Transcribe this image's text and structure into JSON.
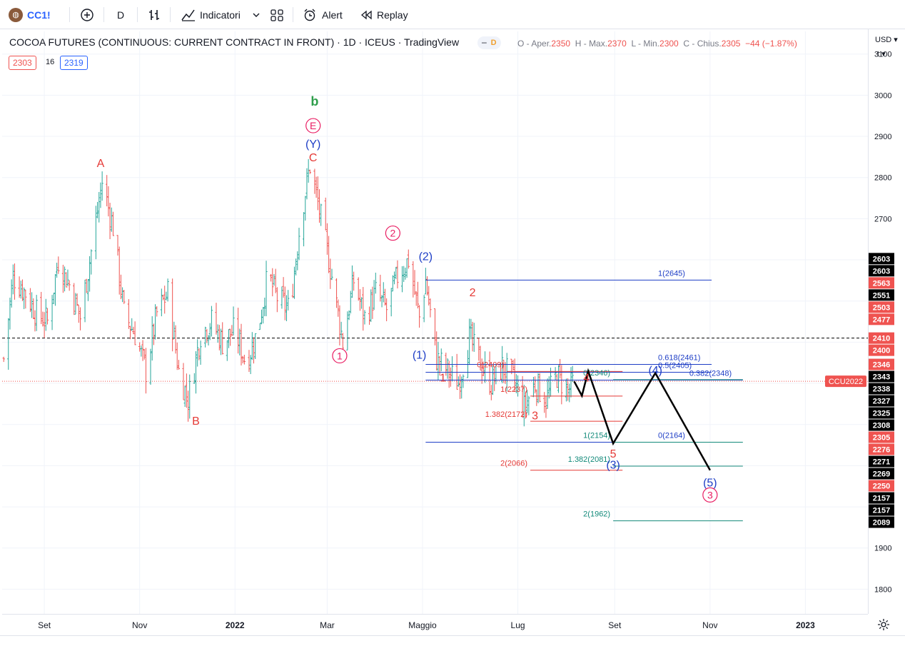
{
  "toolbar": {
    "symbol": "CC1!",
    "interval": "D",
    "indicators_label": "Indicatori",
    "alert_label": "Alert",
    "replay_label": "Replay"
  },
  "legend": {
    "title": "COCOA FUTURES (CONTINUOUS: CURRENT CONTRACT IN FRONT) · 1D · ICEUS · TradingView",
    "badge": "D",
    "o_label": "O - Aper.",
    "o_value": "2350",
    "h_label": "H - Max.",
    "h_value": "2370",
    "l_label": "L - Min.",
    "l_value": "2300",
    "c_label": "C - Chius.",
    "c_value": "2305",
    "change": "−44 (−1.87%)",
    "bid": "2303",
    "spread": "16",
    "ask": "2319"
  },
  "price_axis": {
    "currency": "USD",
    "unit_menu": "t",
    "ticks": [
      1800,
      1900,
      2000,
      2100,
      2200,
      2300,
      2400,
      2500,
      2600,
      2700,
      2800,
      2900,
      3000,
      3100
    ],
    "tick_labels": [
      "1800",
      "1900",
      "2000",
      "",
      "",
      "",
      "",
      "",
      "",
      "2700",
      "2800",
      "2900",
      "3000",
      "3100"
    ],
    "tags": [
      {
        "text": "2603",
        "price": 2603,
        "color": "#000000"
      },
      {
        "text": "2603",
        "price": 2603,
        "color": "#000000"
      },
      {
        "text": "2563",
        "price": 2563,
        "color": "#ef5350"
      },
      {
        "text": "2551",
        "price": 2551,
        "color": "#000000"
      },
      {
        "text": "2503",
        "price": 2503,
        "color": "#ef5350"
      },
      {
        "text": "2477",
        "price": 2477,
        "color": "#ef5350"
      },
      {
        "text": "2410",
        "price": 2410,
        "color": "#ef5350"
      },
      {
        "text": "2400",
        "price": 2400,
        "color": "#ef5350"
      },
      {
        "text": "2346",
        "price": 2346,
        "color": "#ef5350"
      },
      {
        "text": "2343",
        "price": 2343,
        "color": "#000000"
      },
      {
        "text": "2338",
        "price": 2338,
        "color": "#000000"
      },
      {
        "text": "2327",
        "price": 2327,
        "color": "#000000"
      },
      {
        "text": "2325",
        "price": 2325,
        "color": "#000000"
      },
      {
        "text": "2308",
        "price": 2308,
        "color": "#000000"
      },
      {
        "text": "2305",
        "price": 2305,
        "color": "#ef5350"
      },
      {
        "text": "2276",
        "price": 2276,
        "color": "#ef5350"
      },
      {
        "text": "2271",
        "price": 2271,
        "color": "#000000"
      },
      {
        "text": "2269",
        "price": 2269,
        "color": "#000000"
      },
      {
        "text": "2250",
        "price": 2250,
        "color": "#ef5350"
      },
      {
        "text": "2157",
        "price": 2157,
        "color": "#000000"
      },
      {
        "text": "2157",
        "price": 2157,
        "color": "#000000"
      },
      {
        "text": "2089",
        "price": 2089,
        "color": "#000000"
      }
    ],
    "contract_tag": "CCU2022"
  },
  "time_axis": {
    "labels": [
      {
        "text": "Set",
        "date": "2021-09-01"
      },
      {
        "text": "Nov",
        "date": "2021-11-01"
      },
      {
        "text": "2022",
        "date": "2022-01-01"
      },
      {
        "text": "Mar",
        "date": "2022-03-01"
      },
      {
        "text": "Maggio",
        "date": "2022-05-01"
      },
      {
        "text": "Lug",
        "date": "2022-07-01"
      },
      {
        "text": "Set",
        "date": "2022-09-01"
      },
      {
        "text": "Nov",
        "date": "2022-11-01"
      },
      {
        "text": "2023",
        "date": "2023-01-01"
      }
    ]
  },
  "chart_data": {
    "type": "candlestick",
    "title": "COCOA FUTURES (CONTINUOUS: CURRENT CONTRACT IN FRONT) · 1D · ICEUS · TradingView",
    "xlabel": "",
    "ylabel": "",
    "ylim": [
      1740,
      3155
    ],
    "xlim": [
      "2021-08-05",
      "2023-02-10"
    ],
    "grid": true,
    "colors": {
      "up": "#26a69a",
      "down": "#ef5350",
      "red": "#e53935",
      "blue": "#1e3ec6",
      "green": "#2e9e4b",
      "pink": "#e91e63",
      "teal": "#138a7a",
      "black": "#000000"
    },
    "close_path": [
      [
        "2021-08-06",
        2360
      ],
      [
        "2021-08-12",
        2560
      ],
      [
        "2021-08-20",
        2520
      ],
      [
        "2021-08-27",
        2470
      ],
      [
        "2021-09-03",
        2450
      ],
      [
        "2021-09-10",
        2600
      ],
      [
        "2021-09-17",
        2540
      ],
      [
        "2021-09-24",
        2460
      ],
      [
        "2021-10-01",
        2620
      ],
      [
        "2021-10-08",
        2790
      ],
      [
        "2021-10-15",
        2680
      ],
      [
        "2021-10-22",
        2470
      ],
      [
        "2021-10-29",
        2420
      ],
      [
        "2021-11-05",
        2330
      ],
      [
        "2021-11-12",
        2470
      ],
      [
        "2021-11-19",
        2520
      ],
      [
        "2021-11-26",
        2330
      ],
      [
        "2021-12-02",
        2260
      ],
      [
        "2021-12-10",
        2420
      ],
      [
        "2021-12-17",
        2450
      ],
      [
        "2021-12-24",
        2400
      ],
      [
        "2022-01-01",
        2430
      ],
      [
        "2022-01-08",
        2350
      ],
      [
        "2022-01-15",
        2420
      ],
      [
        "2022-01-22",
        2560
      ],
      [
        "2022-01-29",
        2500
      ],
      [
        "2022-02-05",
        2480
      ],
      [
        "2022-02-12",
        2700
      ],
      [
        "2022-02-18",
        2830
      ],
      [
        "2022-02-25",
        2700
      ],
      [
        "2022-03-04",
        2560
      ],
      [
        "2022-03-11",
        2400
      ],
      [
        "2022-03-18",
        2550
      ],
      [
        "2022-03-25",
        2460
      ],
      [
        "2022-04-01",
        2520
      ],
      [
        "2022-04-08",
        2480
      ],
      [
        "2022-04-15",
        2560
      ],
      [
        "2022-04-22",
        2600
      ],
      [
        "2022-04-29",
        2460
      ],
      [
        "2022-05-03",
        2551
      ],
      [
        "2022-05-10",
        2360
      ],
      [
        "2022-05-17",
        2330
      ],
      [
        "2022-05-24",
        2300
      ],
      [
        "2022-05-31",
        2410
      ],
      [
        "2022-06-07",
        2350
      ],
      [
        "2022-06-14",
        2300
      ],
      [
        "2022-06-21",
        2340
      ],
      [
        "2022-06-28",
        2310
      ],
      [
        "2022-07-05",
        2240
      ],
      [
        "2022-07-12",
        2300
      ],
      [
        "2022-07-19",
        2260
      ],
      [
        "2022-07-26",
        2320
      ],
      [
        "2022-08-02",
        2280
      ],
      [
        "2022-08-06",
        2305
      ]
    ],
    "projection": {
      "color": "#000000",
      "points": [
        [
          "2022-08-06",
          2305
        ],
        [
          "2022-08-11",
          2270
        ],
        [
          "2022-08-15",
          2330
        ],
        [
          "2022-08-31",
          2154
        ],
        [
          "2022-09-27",
          2325
        ],
        [
          "2022-11-01",
          2089
        ]
      ]
    },
    "price_line": {
      "price": 2410,
      "style": "dashed",
      "color": "#000000"
    },
    "current_price_line": {
      "price": 2305,
      "style": "dotted",
      "color": "#ef5350"
    },
    "fib_levels": [
      {
        "label": "1(2645)",
        "price": 2551,
        "from": "2022-05-03",
        "to": "2022-11-02",
        "color": "#1e3ec6"
      },
      {
        "label": "0.618(2461)",
        "price": 2346,
        "from": "2022-05-03",
        "to": "2022-11-02",
        "color": "#1e3ec6"
      },
      {
        "label": "0.5(2405)",
        "price": 2327,
        "from": "2022-05-03",
        "to": "2022-11-02",
        "color": "#1e3ec6"
      },
      {
        "label": "0.382(2348)",
        "price": 2308,
        "from": "2022-05-03",
        "to": "2022-11-22",
        "color": "#1e3ec6"
      },
      {
        "label": "0(2164)",
        "price": 2157,
        "from": "2022-05-03",
        "to": "2022-11-02",
        "color": "#1e3ec6"
      },
      {
        "label": "0(2409)",
        "price": 2329,
        "from": "2022-06-24",
        "to": "2022-09-06",
        "color": "#e53935"
      },
      {
        "label": "1(2237)",
        "price": 2269,
        "from": "2022-07-09",
        "to": "2022-09-06",
        "color": "#e53935"
      },
      {
        "label": "1.382(2172)",
        "price": 2208,
        "from": "2022-07-09",
        "to": "2022-09-06",
        "color": "#e53935"
      },
      {
        "label": "2(2066)",
        "price": 2089,
        "from": "2022-07-09",
        "to": "2022-09-06",
        "color": "#e53935"
      },
      {
        "label": "0(2346)",
        "price": 2309,
        "from": "2022-08-31",
        "to": "2022-11-22",
        "color": "#138a7a"
      },
      {
        "label": "1(2154)",
        "price": 2157,
        "from": "2022-08-31",
        "to": "2022-11-22",
        "color": "#138a7a"
      },
      {
        "label": "1.382(2081)",
        "price": 2099,
        "from": "2022-08-31",
        "to": "2022-11-22",
        "color": "#138a7a"
      },
      {
        "label": "2(1962)",
        "price": 1966,
        "from": "2022-08-31",
        "to": "2022-11-22",
        "color": "#138a7a"
      }
    ],
    "wave_labels": [
      {
        "text": "A",
        "date": "2021-10-07",
        "price": 2836,
        "color": "#e53935",
        "style": "plain"
      },
      {
        "text": "B",
        "date": "2021-12-07",
        "price": 2210,
        "color": "#e53935",
        "style": "plain"
      },
      {
        "text": "b",
        "date": "2022-02-21",
        "price": 2985,
        "color": "#2e9e4b",
        "style": "bold"
      },
      {
        "text": "E",
        "date": "2022-02-20",
        "price": 2926,
        "color": "#e91e63",
        "style": "circle"
      },
      {
        "text": "(Y)",
        "date": "2022-02-20",
        "price": 2883,
        "color": "#1e3ec6",
        "style": "plain"
      },
      {
        "text": "C",
        "date": "2022-02-20",
        "price": 2850,
        "color": "#e53935",
        "style": "plain"
      },
      {
        "text": "2",
        "date": "2022-04-12",
        "price": 2665,
        "color": "#e91e63",
        "style": "circle"
      },
      {
        "text": "1",
        "date": "2022-03-09",
        "price": 2367,
        "color": "#e91e63",
        "style": "circle"
      },
      {
        "text": "(2)",
        "date": "2022-05-03",
        "price": 2610,
        "color": "#1e3ec6",
        "style": "plain"
      },
      {
        "text": "2",
        "date": "2022-06-02",
        "price": 2522,
        "color": "#e53935",
        "style": "plain"
      },
      {
        "text": "(1)",
        "date": "2022-04-29",
        "price": 2370,
        "color": "#1e3ec6",
        "style": "plain"
      },
      {
        "text": "1",
        "date": "2022-05-14",
        "price": 2315,
        "color": "#e53935",
        "style": "plain"
      },
      {
        "text": "4",
        "date": "2022-08-14",
        "price": 2315,
        "color": "#e53935",
        "style": "plain"
      },
      {
        "text": "3",
        "date": "2022-07-12",
        "price": 2223,
        "color": "#e53935",
        "style": "plain"
      },
      {
        "text": "5",
        "date": "2022-08-31",
        "price": 2130,
        "color": "#e53935",
        "style": "plain"
      },
      {
        "text": "(3)",
        "date": "2022-08-31",
        "price": 2103,
        "color": "#1e3ec6",
        "style": "plain"
      },
      {
        "text": "(4)",
        "date": "2022-09-27",
        "price": 2333,
        "color": "#1e3ec6",
        "style": "plain"
      },
      {
        "text": "(5)",
        "date": "2022-11-01",
        "price": 2060,
        "color": "#1e3ec6",
        "style": "plain"
      },
      {
        "text": "3",
        "date": "2022-11-01",
        "price": 2029,
        "color": "#e91e63",
        "style": "circle"
      }
    ]
  }
}
